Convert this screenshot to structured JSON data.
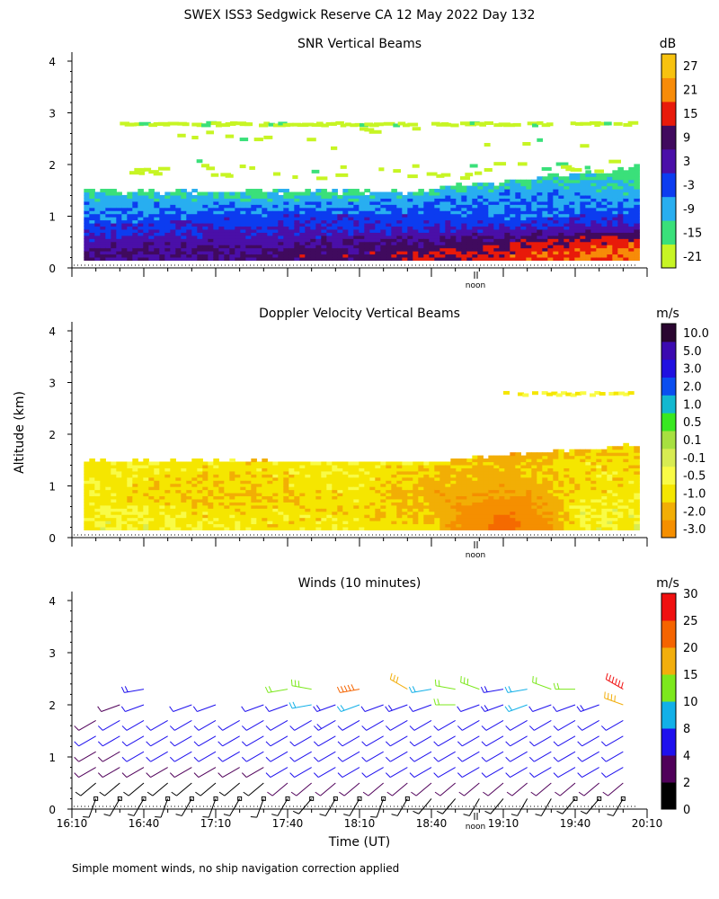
{
  "figure": {
    "title": "SWEX ISS3 Sedgwick Reserve CA  12 May 2022 Day 132",
    "ylabel": "Altitude (km)",
    "xlabel": "Time (UT)",
    "footnote": "Simple moment winds, no ship navigation correction applied",
    "noon_label": "noon"
  },
  "colors": {
    "snr_palette": [
      "#c7f524",
      "#3ae07a",
      "#28aef0",
      "#0c3cf0",
      "#4a0fa8",
      "#400a5e",
      "#e81a0a",
      "#f78b08",
      "#f7c20f"
    ],
    "doppler_palette": [
      "#f20000",
      "#f23d00",
      "#f56a00",
      "#f58f00",
      "#f2ae05",
      "#f5e600",
      "#f9fb46",
      "#d8ec52",
      "#a7e040",
      "#38e820",
      "#12b8d0",
      "#0a4ef0",
      "#2010e0",
      "#3c0ab0",
      "#2a0530"
    ],
    "wind_palette": [
      "#000000",
      "#50005a",
      "#1e10ee",
      "#12b0e8",
      "#7ce81c",
      "#f2ae0c",
      "#f56400",
      "#f01010"
    ]
  },
  "chart_data": [
    {
      "type": "heatmap",
      "name": "snr",
      "title": "SNR Vertical Beams",
      "units": "dB",
      "ylabel": "Altitude (km)",
      "ylim": [
        0,
        4
      ],
      "yticks": [
        "0",
        "1",
        "2",
        "3",
        "4"
      ],
      "xlim": [
        "16:10",
        "20:10"
      ],
      "colorbar_labels": [
        "-21",
        "-15",
        "-9",
        "-3",
        "3",
        "9",
        "15",
        "21",
        "27"
      ],
      "altitude_km": [
        0.25,
        0.5,
        0.75,
        1.0,
        1.25,
        1.5,
        1.75,
        2.0,
        2.5,
        2.8
      ],
      "times": [
        "16:10",
        "16:40",
        "17:10",
        "17:40",
        "18:10",
        "18:40",
        "19:10",
        "19:40",
        "20:10"
      ],
      "values_db": [
        [
          3,
          3,
          3,
          6,
          6,
          9,
          12,
          15,
          18
        ],
        [
          0,
          0,
          0,
          0,
          3,
          3,
          6,
          9,
          12
        ],
        [
          -6,
          -3,
          -3,
          -3,
          -3,
          -3,
          -3,
          0,
          0
        ],
        [
          -9,
          -9,
          -6,
          -6,
          -6,
          -6,
          -9,
          -6,
          -6
        ],
        [
          -12,
          -12,
          -12,
          -12,
          -12,
          -9,
          -9,
          -9,
          -9
        ],
        [
          -18,
          -18,
          -18,
          -18,
          -18,
          -15,
          -12,
          -12,
          -15
        ],
        [
          -21,
          -21,
          -21,
          -21,
          -21,
          -21,
          -18,
          -15,
          -18
        ],
        [
          -24,
          -24,
          -24,
          -24,
          -24,
          -21,
          -21,
          -18,
          -21
        ],
        [
          -24,
          -24,
          -24,
          -24,
          -24,
          -24,
          -24,
          -21,
          -21
        ],
        [
          -21,
          -21,
          -21,
          -21,
          -21,
          -21,
          -21,
          -18,
          -18
        ]
      ]
    },
    {
      "type": "heatmap",
      "name": "doppler",
      "title": "Doppler Velocity Vertical Beams",
      "units": "m/s",
      "ylabel": "Altitude (km)",
      "ylim": [
        0,
        4
      ],
      "yticks": [
        "0",
        "1",
        "2",
        "3",
        "4"
      ],
      "xlim": [
        "16:10",
        "20:10"
      ],
      "colorbar_labels": [
        "-3.0",
        "-2.0",
        "-1.0",
        "-0.5",
        "-0.1",
        "0.1",
        "0.5",
        "1.0",
        "2.0",
        "3.0",
        "5.0",
        "10.0"
      ],
      "altitude_km": [
        0.2,
        0.5,
        0.8,
        1.1,
        1.4,
        1.7
      ],
      "times": [
        "16:10",
        "16:40",
        "17:10",
        "17:40",
        "18:10",
        "18:40",
        "19:10",
        "19:40",
        "20:10"
      ],
      "values_ms": [
        [
          -0.1,
          -0.1,
          -0.2,
          -0.3,
          -0.2,
          -0.5,
          -2.5,
          -0.1,
          -0.1
        ],
        [
          -0.1,
          -0.2,
          -0.4,
          -0.3,
          -0.4,
          -0.6,
          -2.0,
          -0.1,
          -0.1
        ],
        [
          -0.2,
          -0.4,
          -0.6,
          -0.4,
          -0.3,
          -0.8,
          -1.0,
          -0.4,
          -0.2
        ],
        [
          -0.2,
          -0.3,
          -0.4,
          -0.3,
          -0.2,
          -0.6,
          -0.8,
          -0.3,
          -0.3
        ],
        [
          -0.3,
          -0.2,
          -0.3,
          -0.2,
          -0.2,
          -0.4,
          -0.7,
          -0.3,
          -0.4
        ],
        [
          null,
          null,
          null,
          null,
          null,
          -0.3,
          -1.2,
          -0.5,
          -0.6
        ]
      ]
    },
    {
      "type": "wind_barbs",
      "name": "winds",
      "title": "Winds (10 minutes)",
      "units": "m/s",
      "ylabel": "Altitude (km)",
      "xlabel": "Time (UT)",
      "ylim": [
        0,
        4
      ],
      "yticks": [
        "0",
        "1",
        "2",
        "3",
        "4"
      ],
      "xticks": [
        "16:10",
        "16:40",
        "17:10",
        "17:40",
        "18:10",
        "18:40",
        "19:10",
        "19:40",
        "20:10"
      ],
      "colorbar_labels": [
        "0",
        "2",
        "4",
        "8",
        "10",
        "15",
        "20",
        "25",
        "30"
      ],
      "altitude_km": [
        0.2,
        0.5,
        0.8,
        1.1,
        1.4,
        1.7,
        2.0,
        2.3
      ],
      "times": [
        "16:20",
        "16:30",
        "16:40",
        "16:50",
        "17:00",
        "17:10",
        "17:20",
        "17:30",
        "17:40",
        "17:50",
        "18:00",
        "18:10",
        "18:20",
        "18:30",
        "18:40",
        "18:50",
        "19:00",
        "19:10",
        "19:20",
        "19:30",
        "19:40",
        "19:50",
        "20:00"
      ],
      "speeds_ms": [
        [
          1,
          1,
          1,
          1,
          1,
          1,
          1,
          1,
          1,
          1,
          1,
          1,
          1,
          1,
          2,
          2,
          2,
          2,
          2,
          2,
          1,
          1,
          1
        ],
        [
          2,
          2,
          2,
          2,
          2,
          2,
          2,
          2,
          3,
          3,
          3,
          3,
          3,
          3,
          3,
          3,
          3,
          3,
          3,
          3,
          3,
          3,
          3
        ],
        [
          3,
          4,
          4,
          4,
          4,
          4,
          4,
          4,
          5,
          5,
          5,
          5,
          5,
          5,
          5,
          5,
          5,
          6,
          6,
          5,
          5,
          5,
          5
        ],
        [
          4,
          4,
          5,
          5,
          5,
          5,
          5,
          5,
          6,
          6,
          6,
          6,
          6,
          6,
          6,
          6,
          6,
          7,
          7,
          6,
          6,
          6,
          6
        ],
        [
          5,
          5,
          5,
          6,
          5,
          5,
          5,
          6,
          6,
          7,
          7,
          7,
          7,
          7,
          6,
          7,
          7,
          7,
          7,
          7,
          7,
          7,
          7
        ],
        [
          4,
          5,
          6,
          6,
          5,
          6,
          6,
          6,
          7,
          7,
          8,
          7,
          7,
          7,
          7,
          7,
          7,
          7,
          7,
          7,
          7,
          7,
          7
        ],
        [
          null,
          4,
          6,
          null,
          5,
          6,
          null,
          6,
          7,
          10,
          8,
          9,
          7,
          8,
          7,
          11,
          7,
          8,
          9,
          7,
          7,
          8,
          20
        ],
        [
          null,
          null,
          8,
          null,
          null,
          null,
          null,
          null,
          12,
          14,
          null,
          24,
          null,
          16,
          10,
          12,
          14,
          8,
          9,
          12,
          12,
          null,
          30
        ]
      ],
      "direction_deg": [
        [
          200,
          210,
          210,
          200,
          210,
          200,
          210,
          200,
          210,
          220,
          210,
          210,
          200,
          210,
          220,
          220,
          210,
          220,
          210,
          210,
          220,
          220,
          210
        ],
        [
          230,
          230,
          230,
          230,
          230,
          230,
          230,
          230,
          230,
          230,
          230,
          230,
          230,
          230,
          230,
          230,
          230,
          230,
          230,
          230,
          230,
          230,
          230
        ],
        [
          240,
          240,
          240,
          240,
          240,
          240,
          240,
          240,
          240,
          240,
          240,
          240,
          240,
          240,
          240,
          240,
          240,
          240,
          240,
          240,
          240,
          240,
          240
        ],
        [
          240,
          240,
          240,
          240,
          240,
          240,
          240,
          240,
          240,
          240,
          240,
          240,
          240,
          240,
          240,
          240,
          240,
          240,
          240,
          240,
          240,
          240,
          240
        ],
        [
          240,
          240,
          240,
          240,
          240,
          240,
          240,
          240,
          240,
          240,
          240,
          240,
          240,
          240,
          240,
          240,
          240,
          240,
          240,
          240,
          240,
          240,
          240
        ],
        [
          240,
          240,
          240,
          240,
          240,
          240,
          240,
          240,
          240,
          240,
          240,
          240,
          240,
          240,
          240,
          240,
          240,
          240,
          240,
          240,
          240,
          240,
          240
        ],
        [
          250,
          250,
          250,
          250,
          250,
          250,
          250,
          250,
          250,
          260,
          250,
          250,
          250,
          250,
          250,
          270,
          250,
          250,
          250,
          250,
          250,
          250,
          290
        ],
        [
          260,
          260,
          260,
          260,
          260,
          260,
          260,
          260,
          260,
          280,
          260,
          260,
          260,
          300,
          260,
          280,
          290,
          260,
          260,
          290,
          270,
          260,
          300
        ]
      ]
    }
  ]
}
